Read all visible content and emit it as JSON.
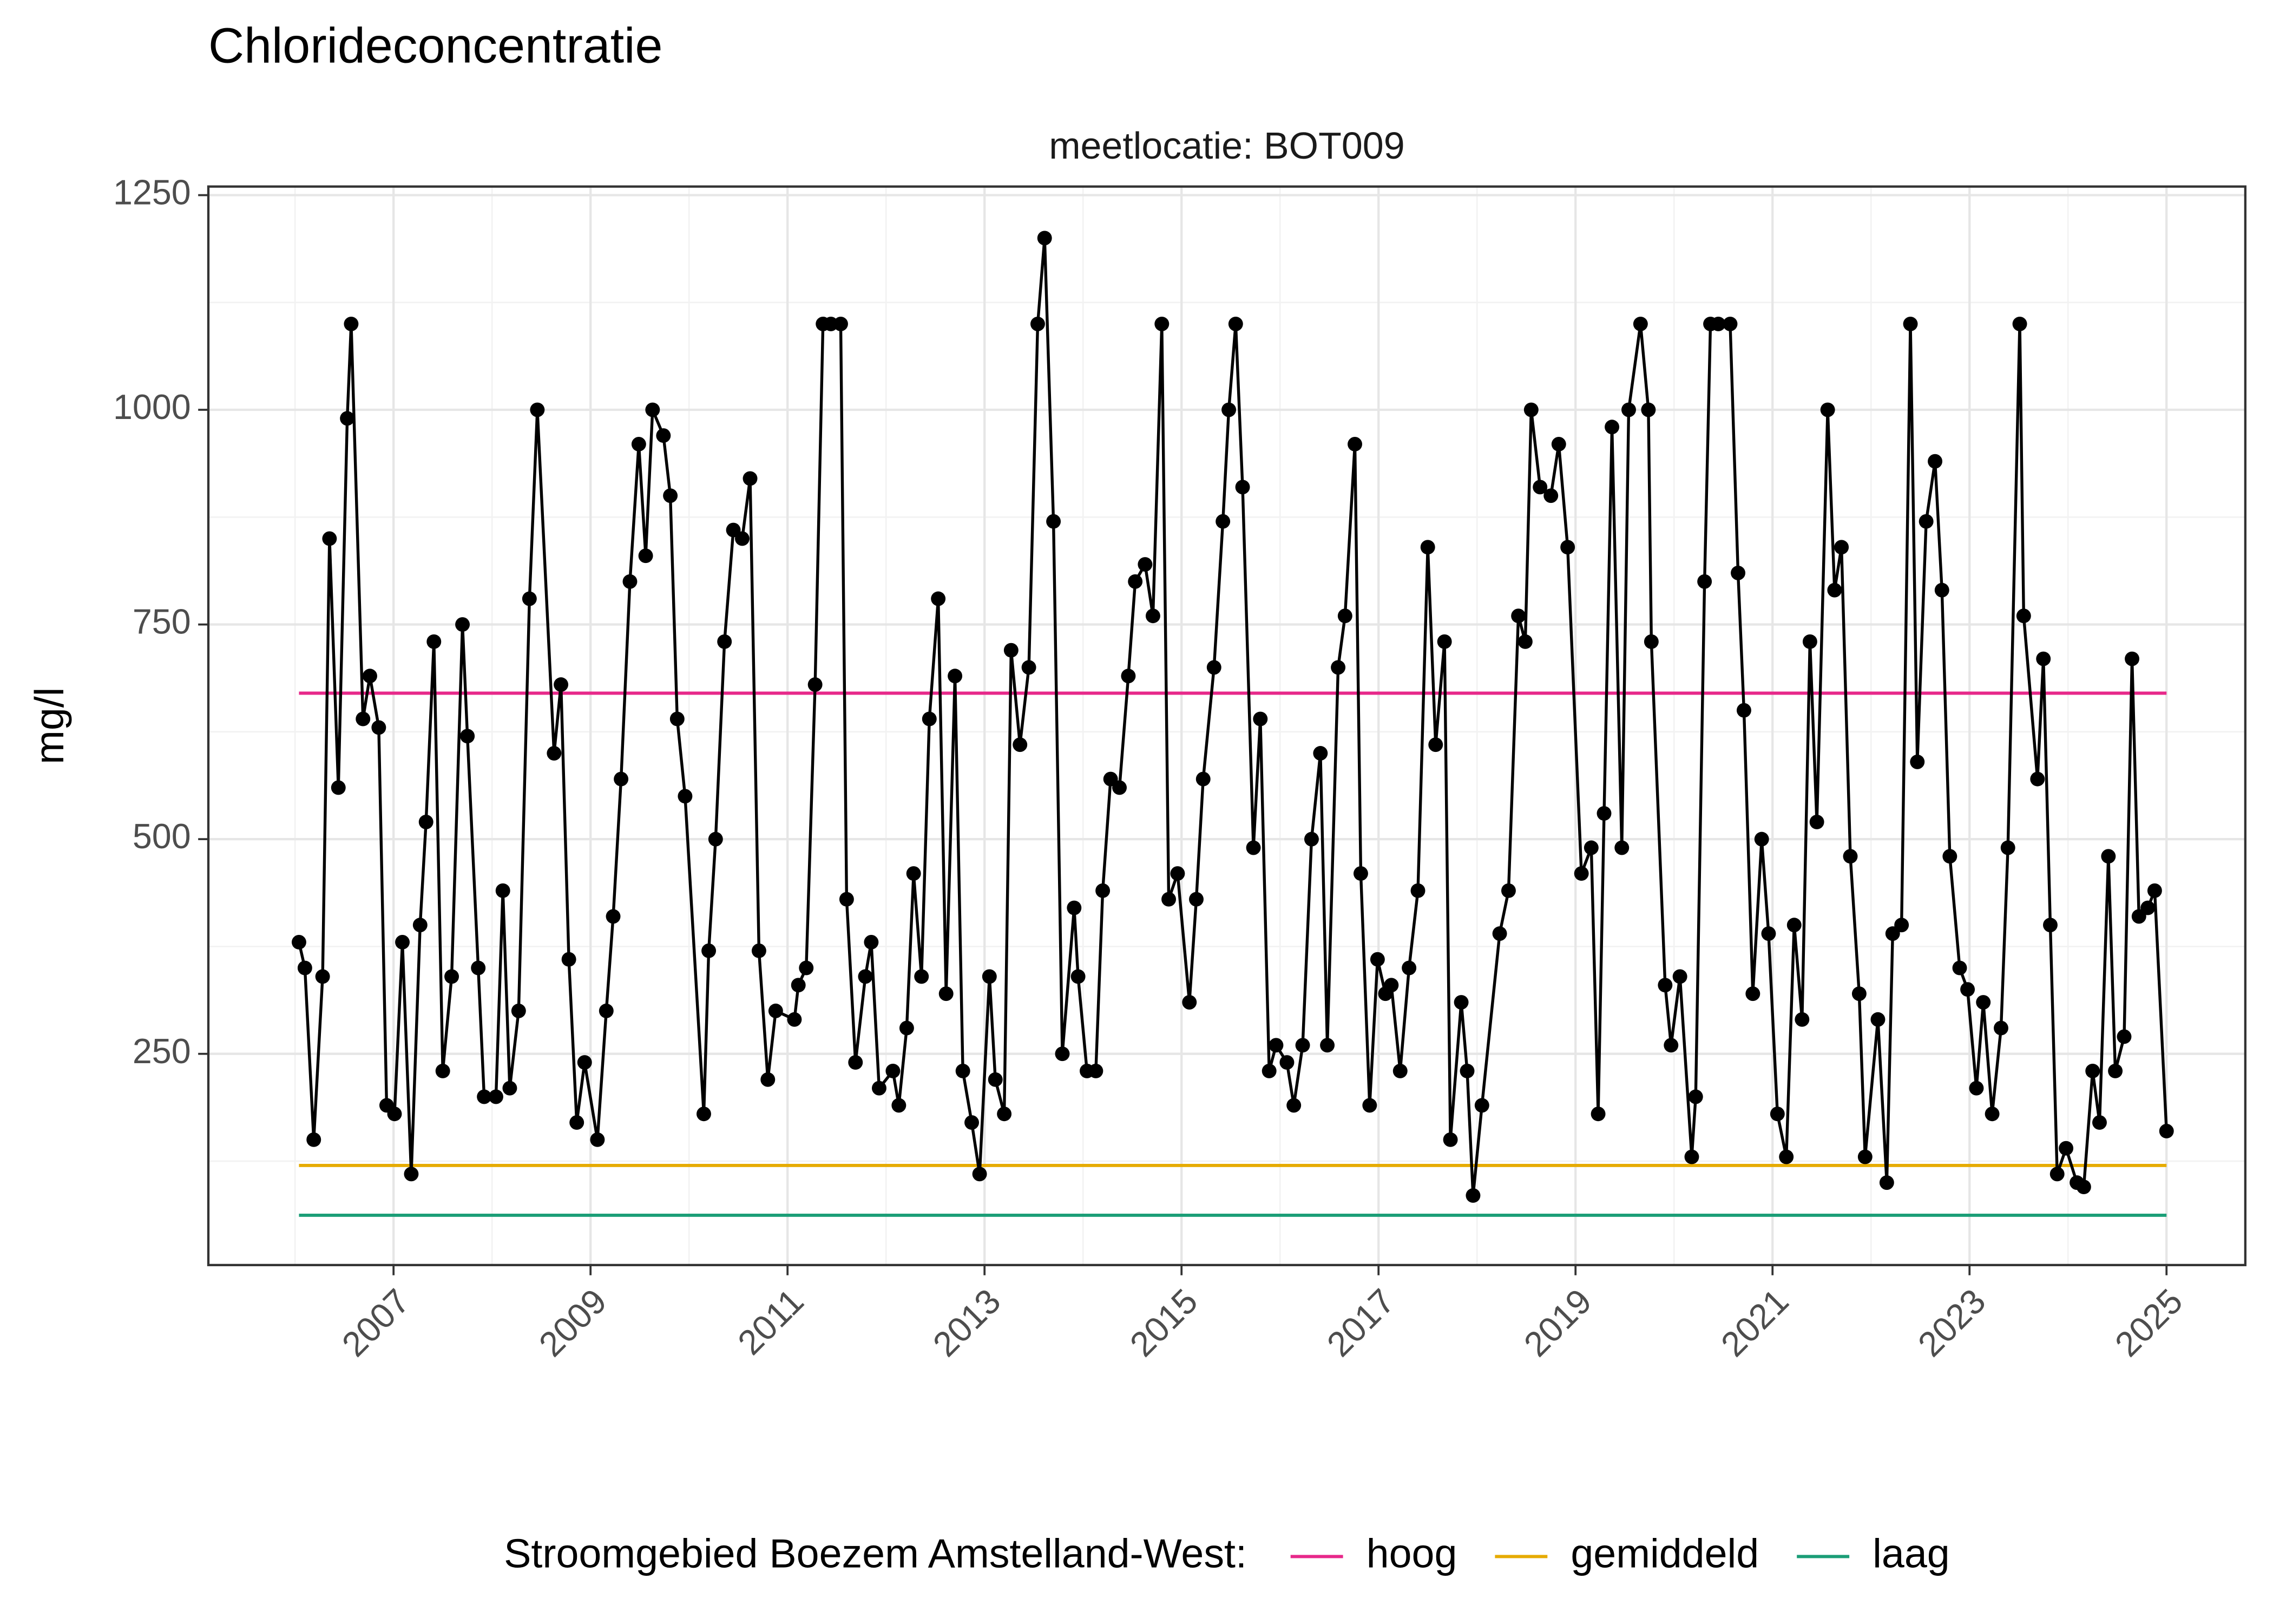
{
  "chart_data": {
    "type": "line",
    "title": "Chlorideconcentratie",
    "subtitle": "meetlocatie: BOT009",
    "y_label": "mg/l",
    "legend_title": "Stroomgebied Boezem Amstelland-West:",
    "legend": "bottom",
    "grid": true,
    "color": "#000000",
    "xlim": [
      2005.12,
      2025.8
    ],
    "ylim": [
      4,
      1260
    ],
    "xticks": [
      2007,
      2009,
      2011,
      2013,
      2015,
      2017,
      2019,
      2021,
      2023,
      2025
    ],
    "yticks": [
      250,
      500,
      750,
      1000,
      1250
    ],
    "x": [
      2006.04,
      2006.1,
      2006.19,
      2006.28,
      2006.35,
      2006.44,
      2006.53,
      2006.57,
      2006.69,
      2006.76,
      2006.85,
      2006.93,
      2007.01,
      2007.09,
      2007.18,
      2007.27,
      2007.33,
      2007.41,
      2007.5,
      2007.59,
      2007.7,
      2007.75,
      2007.86,
      2007.92,
      2008.04,
      2008.11,
      2008.18,
      2008.27,
      2008.38,
      2008.46,
      2008.63,
      2008.7,
      2008.78,
      2008.86,
      2008.94,
      2009.07,
      2009.16,
      2009.23,
      2009.31,
      2009.4,
      2009.49,
      2009.56,
      2009.63,
      2009.74,
      2009.81,
      2009.88,
      2009.96,
      2010.15,
      2010.2,
      2010.27,
      2010.36,
      2010.45,
      2010.54,
      2010.62,
      2010.71,
      2010.8,
      2010.88,
      2011.07,
      2011.11,
      2011.19,
      2011.28,
      2011.36,
      2011.44,
      2011.54,
      2011.6,
      2011.69,
      2011.79,
      2011.85,
      2011.93,
      2012.07,
      2012.13,
      2012.21,
      2012.28,
      2012.36,
      2012.44,
      2012.53,
      2012.61,
      2012.7,
      2012.78,
      2012.87,
      2012.95,
      2013.05,
      2013.11,
      2013.2,
      2013.27,
      2013.36,
      2013.45,
      2013.54,
      2013.61,
      2013.7,
      2013.79,
      2013.91,
      2013.95,
      2014.04,
      2014.13,
      2014.2,
      2014.28,
      2014.37,
      2014.46,
      2014.53,
      2014.63,
      2014.71,
      2014.8,
      2014.87,
      2014.96,
      2015.08,
      2015.15,
      2015.22,
      2015.33,
      2015.42,
      2015.48,
      2015.55,
      2015.62,
      2015.73,
      2015.8,
      2015.89,
      2015.96,
      2016.07,
      2016.14,
      2016.23,
      2016.32,
      2016.41,
      2016.48,
      2016.59,
      2016.66,
      2016.76,
      2016.82,
      2016.91,
      2016.99,
      2017.07,
      2017.13,
      2017.22,
      2017.31,
      2017.4,
      2017.5,
      2017.58,
      2017.67,
      2017.73,
      2017.84,
      2017.9,
      2017.96,
      2018.05,
      2018.23,
      2018.32,
      2018.42,
      2018.49,
      2018.55,
      2018.64,
      2018.75,
      2018.83,
      2018.92,
      2019.06,
      2019.16,
      2019.23,
      2019.29,
      2019.37,
      2019.47,
      2019.54,
      2019.66,
      2019.74,
      2019.77,
      2019.91,
      2019.97,
      2020.06,
      2020.18,
      2020.22,
      2020.31,
      2020.37,
      2020.45,
      2020.57,
      2020.65,
      2020.71,
      2020.8,
      2020.89,
      2020.96,
      2021.05,
      2021.14,
      2021.22,
      2021.3,
      2021.38,
      2021.45,
      2021.56,
      2021.63,
      2021.7,
      2021.79,
      2021.88,
      2021.94,
      2022.07,
      2022.16,
      2022.22,
      2022.31,
      2022.4,
      2022.47,
      2022.56,
      2022.65,
      2022.72,
      2022.8,
      2022.9,
      2022.98,
      2023.07,
      2023.14,
      2023.23,
      2023.32,
      2023.39,
      2023.51,
      2023.55,
      2023.69,
      2023.75,
      2023.82,
      2023.89,
      2023.98,
      2024.09,
      2024.16,
      2024.25,
      2024.32,
      2024.41,
      2024.48,
      2024.57,
      2024.65,
      2024.72,
      2024.81,
      2024.88,
      2025.0
    ],
    "values": [
      380,
      350,
      150,
      340,
      850,
      560,
      990,
      1100,
      640,
      690,
      630,
      190,
      180,
      380,
      110,
      400,
      520,
      730,
      230,
      340,
      750,
      620,
      350,
      200,
      200,
      440,
      210,
      300,
      780,
      1000,
      600,
      680,
      360,
      170,
      240,
      150,
      300,
      410,
      570,
      800,
      960,
      830,
      1000,
      970,
      900,
      640,
      550,
      180,
      370,
      500,
      730,
      860,
      850,
      920,
      370,
      220,
      300,
      290,
      330,
      350,
      680,
      1100,
      1100,
      1100,
      430,
      240,
      340,
      380,
      210,
      230,
      190,
      280,
      460,
      340,
      640,
      780,
      320,
      690,
      230,
      170,
      110,
      340,
      220,
      180,
      720,
      610,
      700,
      1100,
      1200,
      870,
      250,
      420,
      340,
      230,
      230,
      440,
      570,
      560,
      690,
      800,
      820,
      760,
      1100,
      430,
      460,
      310,
      430,
      570,
      700,
      870,
      1000,
      1100,
      910,
      490,
      640,
      230,
      260,
      240,
      190,
      260,
      500,
      600,
      260,
      700,
      760,
      960,
      460,
      190,
      360,
      320,
      330,
      230,
      350,
      440,
      840,
      610,
      730,
      150,
      310,
      230,
      85,
      190,
      390,
      440,
      760,
      730,
      1000,
      910,
      900,
      960,
      840,
      460,
      490,
      180,
      530,
      980,
      490,
      1000,
      1100,
      1000,
      730,
      330,
      260,
      340,
      130,
      200,
      800,
      1100,
      1100,
      1100,
      810,
      650,
      320,
      500,
      390,
      180,
      130,
      400,
      290,
      730,
      520,
      1000,
      790,
      840,
      480,
      320,
      130,
      290,
      100,
      390,
      400,
      1100,
      590,
      870,
      940,
      790,
      480,
      350,
      325,
      210,
      310,
      180,
      280,
      490,
      1100,
      760,
      570,
      710,
      400,
      110,
      140,
      100,
      95,
      230,
      170,
      480,
      230,
      270,
      710,
      410,
      420,
      440,
      160
    ],
    "series": [
      {
        "name": "hoog",
        "color": "#e7298a",
        "x": [
          2006.04,
          2025.0
        ],
        "values": [
          670,
          670
        ]
      },
      {
        "name": "gemiddeld",
        "color": "#e6ab02",
        "x": [
          2006.04,
          2025.0
        ],
        "values": [
          120,
          120
        ]
      },
      {
        "name": "laag",
        "color": "#1b9e77",
        "x": [
          2006.04,
          2025.0
        ],
        "values": [
          62,
          62
        ]
      }
    ]
  }
}
